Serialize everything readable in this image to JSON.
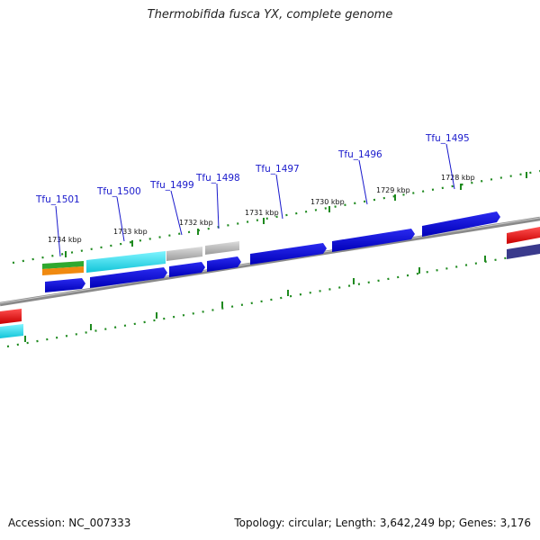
{
  "title": "Thermobifida fusca YX, complete genome",
  "footer": {
    "accession": "Accession: NC_007333",
    "summary": "Topology: circular; Length: 3,642,249 bp; Genes: 3,176"
  },
  "genes": [
    {
      "name": "Tfu_1501"
    },
    {
      "name": "Tfu_1500"
    },
    {
      "name": "Tfu_1499"
    },
    {
      "name": "Tfu_1498"
    },
    {
      "name": "Tfu_1497"
    },
    {
      "name": "Tfu_1496"
    },
    {
      "name": "Tfu_1495"
    }
  ],
  "ticks": [
    "1734 kbp",
    "1733 kbp",
    "1732 kbp",
    "1731 kbp",
    "1730 kbp",
    "1729 kbp",
    "1728 kbp"
  ],
  "colors": {
    "gene_label": "#1a1acc",
    "cds": "#0a0ad8",
    "cyan": "#22d8e8",
    "gray": "#b4b4b4",
    "red": "#e41010",
    "green": "#2fa82f",
    "orange": "#f08a10",
    "tick_green": "#1f8a1f",
    "backbone": "#8a8a8a"
  }
}
